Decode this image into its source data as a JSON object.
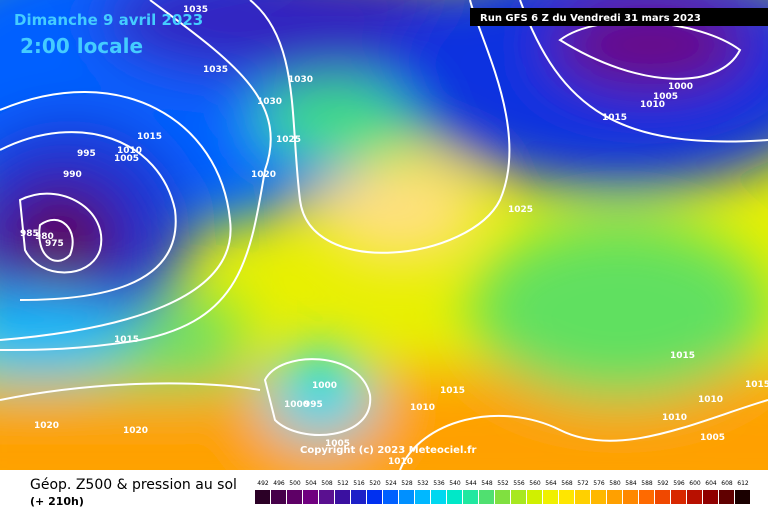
{
  "header": {
    "date": "Dimanche 9 avril 2023",
    "time": "2:00 locale",
    "run": "Run GFS 6 Z du Vendredi 31 mars 2023"
  },
  "isobar_labels": [
    1035,
    1035,
    1030,
    1030,
    1015,
    1010,
    995,
    1005,
    1025,
    1020,
    990,
    985,
    980,
    975,
    1025,
    1000,
    1005,
    1010,
    1015,
    1015,
    1015,
    1015,
    1000,
    1000,
    995,
    1010,
    1010,
    1015,
    1010,
    1005,
    1020,
    1020,
    1005,
    1010
  ],
  "copyright": "Copyright (c) 2023 Meteociel.fr",
  "legend": {
    "title": "Géop. Z500 & pression au sol",
    "lead": "(+ 210h)",
    "scale": [
      492,
      496,
      500,
      504,
      508,
      512,
      516,
      520,
      524,
      528,
      532,
      536,
      540,
      544,
      548,
      552,
      556,
      560,
      564,
      568,
      572,
      576,
      580,
      584,
      588,
      592,
      596,
      600,
      604,
      608,
      612
    ],
    "colors": [
      "#2b0026",
      "#46004a",
      "#5e0066",
      "#700080",
      "#5a1090",
      "#3a10a0",
      "#1d20c8",
      "#0030f0",
      "#0060ff",
      "#0090ff",
      "#00b8ff",
      "#00d8f0",
      "#00e8c8",
      "#20e8a0",
      "#50e070",
      "#80e040",
      "#a8e820",
      "#d0f000",
      "#f0f000",
      "#ffe600",
      "#ffd000",
      "#ffb800",
      "#ffa000",
      "#ff8800",
      "#ff6a00",
      "#f04800",
      "#d82800",
      "#b81000",
      "#900000",
      "#600000",
      "#1a0000"
    ]
  }
}
